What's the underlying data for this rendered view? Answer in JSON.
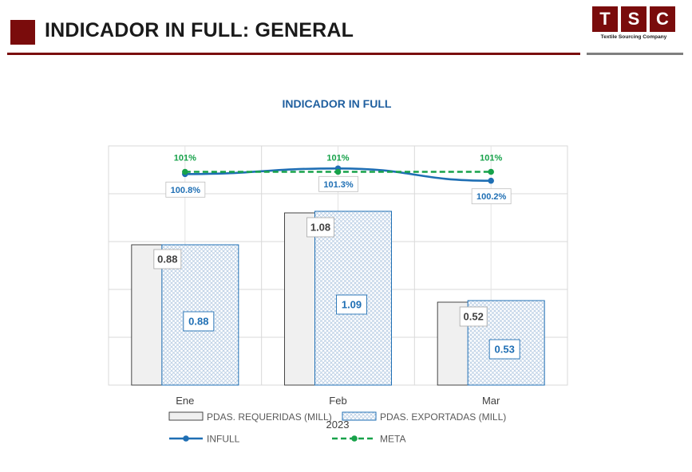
{
  "header": {
    "title": "INDICADOR IN FULL: GENERAL",
    "logo_letters": [
      "T",
      "S",
      "C"
    ],
    "logo_caption": "Textile Sourcing Company"
  },
  "colors": {
    "brand": "#7a0c0c",
    "requeridas_fill": "#f0f0f0",
    "exportadas": "#1f6fb4",
    "infull": "#1f6fb4",
    "meta": "#17a24a"
  },
  "chart_data": {
    "type": "bar",
    "title": "INDICADOR IN FULL",
    "xlabel": "2023",
    "categories": [
      "Ene",
      "Feb",
      "Mar"
    ],
    "series": [
      {
        "name": "PDAS. REQUERIDAS (MILL)",
        "values": [
          0.88,
          1.08,
          0.52
        ],
        "labels": [
          "0.88",
          "1.08",
          "0.52"
        ]
      },
      {
        "name": "PDAS. EXPORTADAS (MILL)",
        "values": [
          0.88,
          1.09,
          0.53
        ],
        "labels": [
          "0.88",
          "1.09",
          "0.53"
        ]
      }
    ],
    "lines": [
      {
        "name": "INFULL",
        "values": [
          100.8,
          101.3,
          100.2
        ],
        "labels": [
          "100.8%",
          "101.3%",
          "100.2%"
        ]
      },
      {
        "name": "META",
        "values": [
          101,
          101,
          101
        ],
        "labels": [
          "101%",
          "101%",
          "101%"
        ]
      }
    ],
    "grid": true,
    "legend_position": "bottom"
  }
}
